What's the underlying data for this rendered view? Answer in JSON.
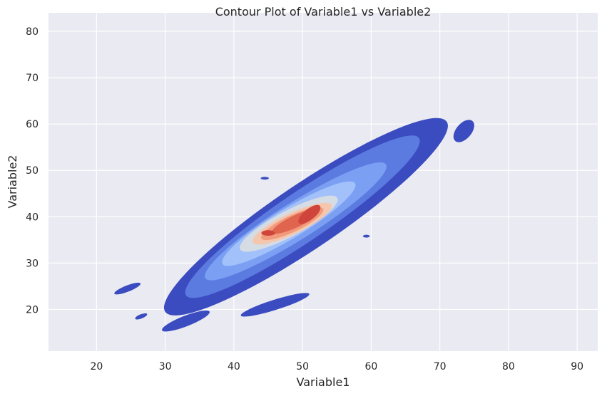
{
  "chart_data": {
    "type": "contour",
    "title": "Contour Plot of Variable1 vs Variable2",
    "xlabel": "Variable1",
    "ylabel": "Variable2",
    "xlim": [
      13,
      93
    ],
    "ylim": [
      11,
      84
    ],
    "xticks": [
      20,
      30,
      40,
      50,
      60,
      70,
      80,
      90
    ],
    "yticks": [
      20,
      30,
      40,
      50,
      60,
      70,
      80
    ],
    "grid": true,
    "colormap": "coolwarm",
    "background": "#eaeaf2",
    "grid_color": "#ffffff",
    "contour_levels": [
      {
        "level": 1,
        "color": "#3b4cc0",
        "regions": [
          {
            "cx": 50.5,
            "cy": 40,
            "rx": 29,
            "ry": 5.5,
            "angle": 45
          }
        ]
      },
      {
        "level": 2,
        "color": "#5b7be0",
        "regions": [
          {
            "cx": 50,
            "cy": 40,
            "rx": 24,
            "ry": 4.2,
            "angle": 45
          }
        ]
      },
      {
        "level": 3,
        "color": "#7b9ff2",
        "regions": [
          {
            "cx": 49,
            "cy": 39,
            "rx": 18,
            "ry": 3.2,
            "angle": 43
          }
        ]
      },
      {
        "level": 4,
        "color": "#a2c0fa",
        "regions": [
          {
            "cx": 48,
            "cy": 38.5,
            "rx": 13,
            "ry": 2.6,
            "angle": 42
          }
        ]
      },
      {
        "level": 5,
        "color": "#d6dce4",
        "regions": [
          {
            "cx": 48,
            "cy": 38.5,
            "rx": 9,
            "ry": 2.3,
            "angle": 38
          }
        ]
      },
      {
        "level": 6,
        "color": "#f4c6ad",
        "regions": [
          {
            "cx": 48.5,
            "cy": 38.5,
            "rx": 7,
            "ry": 1.9,
            "angle": 35
          }
        ]
      },
      {
        "level": 7,
        "color": "#f29a7c",
        "regions": [
          {
            "cx": 48.5,
            "cy": 38.5,
            "rx": 5.5,
            "ry": 1.5,
            "angle": 35
          }
        ]
      },
      {
        "level": 8,
        "color": "#e0654f",
        "regions": [
          {
            "cx": 49,
            "cy": 39,
            "rx": 4.2,
            "ry": 1.1,
            "angle": 35
          }
        ]
      },
      {
        "level": 9,
        "color": "#cf453c",
        "regions": [
          {
            "cx": 51,
            "cy": 40.5,
            "rx": 2.4,
            "ry": 0.9,
            "angle": 50
          },
          {
            "cx": 45,
            "cy": 36.5,
            "rx": 1.0,
            "ry": 0.6,
            "angle": 0
          }
        ]
      }
    ],
    "islands": [
      {
        "cx": 46,
        "cy": 21,
        "rx": 5.5,
        "ry": 1.0,
        "angle": 25,
        "color": "#3b4cc0"
      },
      {
        "cx": 24.5,
        "cy": 24.5,
        "rx": 2.2,
        "ry": 0.6,
        "angle": 30,
        "color": "#3b4cc0"
      },
      {
        "cx": 26.5,
        "cy": 18.5,
        "rx": 1.0,
        "ry": 0.4,
        "angle": 30,
        "color": "#3b4cc0"
      },
      {
        "cx": 44.5,
        "cy": 48.3,
        "rx": 0.6,
        "ry": 0.3,
        "angle": 0,
        "color": "#3b4cc0"
      },
      {
        "cx": 59.3,
        "cy": 35.8,
        "rx": 0.5,
        "ry": 0.3,
        "angle": 0,
        "color": "#3b4cc0"
      },
      {
        "cx": 73.5,
        "cy": 58.5,
        "rx": 2.5,
        "ry": 1.2,
        "angle": 60,
        "color": "#3b4cc0"
      },
      {
        "cx": 33,
        "cy": 17.5,
        "rx": 4,
        "ry": 1.0,
        "angle": 30,
        "color": "#3b4cc0"
      }
    ]
  }
}
